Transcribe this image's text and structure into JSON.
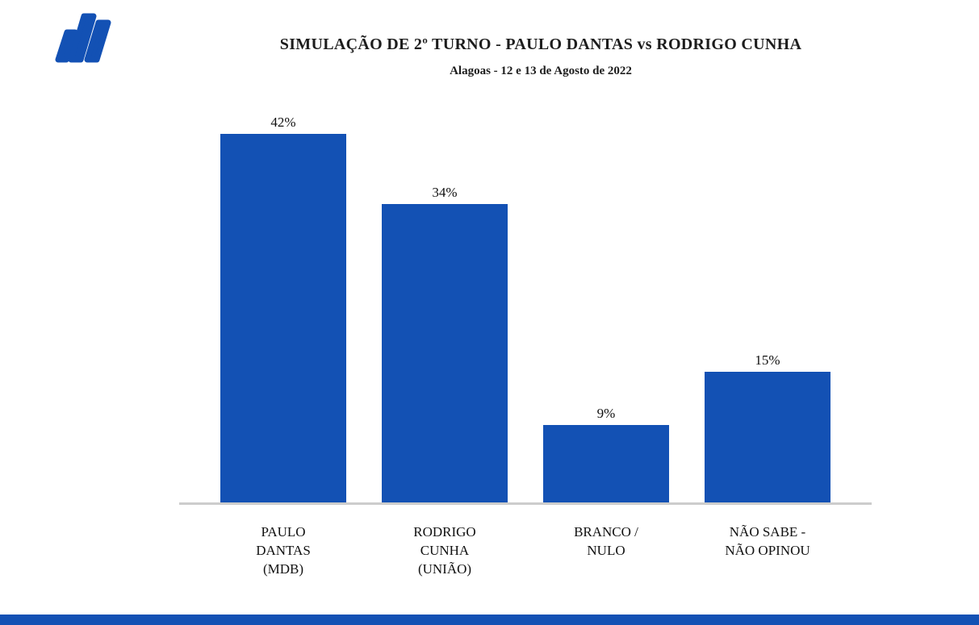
{
  "logo": {
    "name": "brand-logo",
    "color": "#1351b4"
  },
  "chart_data": {
    "type": "bar",
    "title": "SIMULAÇÃO DE 2º TURNO - PAULO DANTAS vs RODRIGO CUNHA",
    "subtitle": "Alagoas - 12 e 13 de Agosto de 2022",
    "categories": [
      "PAULO DANTAS (MDB)",
      "RODRIGO CUNHA (UNIÃO)",
      "BRANCO / NULO",
      "NÃO SABE - NÃO OPINOU"
    ],
    "category_lines": [
      [
        "PAULO",
        "DANTAS",
        "(MDB)"
      ],
      [
        "RODRIGO",
        "CUNHA",
        "(UNIÃO)"
      ],
      [
        "BRANCO /",
        "NULO"
      ],
      [
        "NÃO SABE  -",
        "NÃO OPINOU"
      ]
    ],
    "values": [
      42,
      34,
      9,
      15
    ],
    "value_labels": [
      "42%",
      "34%",
      "9%",
      "15%"
    ],
    "xlabel": "",
    "ylabel": "",
    "ylim": [
      0,
      45
    ],
    "grid": false,
    "legend": false,
    "bar_color": "#1351b4",
    "axis_line_color": "#cccccc"
  },
  "footer": {
    "bar_color": "#1351b4"
  }
}
